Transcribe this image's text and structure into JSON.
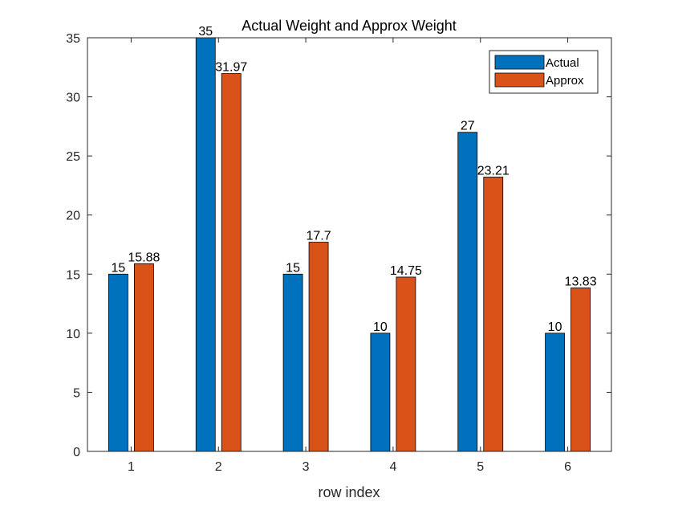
{
  "chart_data": {
    "type": "bar",
    "title": "Actual Weight and Approx Weight",
    "xlabel": "row index",
    "ylabel": "",
    "categories": [
      "1",
      "2",
      "3",
      "4",
      "5",
      "6"
    ],
    "ylim": [
      0,
      35
    ],
    "yticks": [
      "0",
      "5",
      "10",
      "15",
      "20",
      "25",
      "30",
      "35"
    ],
    "grid": false,
    "legend_position": "top-right",
    "series": [
      {
        "name": "Actual",
        "color": "#0072BD",
        "values": [
          15,
          35,
          15,
          10,
          27,
          10
        ],
        "labels": [
          "15",
          "35",
          "15",
          "10",
          "27",
          "10"
        ]
      },
      {
        "name": "Approx",
        "color": "#D95319",
        "values": [
          15.88,
          31.97,
          17.7,
          14.75,
          23.21,
          13.83
        ],
        "labels": [
          "15.88",
          "31.97",
          "17.7",
          "14.75",
          "23.21",
          "13.83"
        ]
      }
    ]
  }
}
